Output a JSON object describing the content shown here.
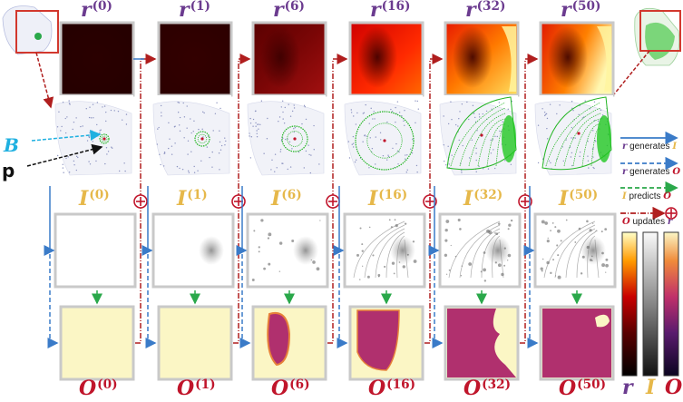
{
  "iterations": [
    "0",
    "1",
    "6",
    "16",
    "32",
    "50"
  ],
  "labels": {
    "r": "r",
    "I": "I",
    "O": "O",
    "B": "B",
    "p": "p"
  },
  "legend": {
    "r_generates_I": {
      "a": "r",
      "text": "generates",
      "b": "I"
    },
    "r_generates_O": {
      "a": "r",
      "text": "generates",
      "b": "O"
    },
    "I_predicts_O": {
      "a": "I",
      "text": "predicts",
      "b": "O"
    },
    "O_updates_r": {
      "a": "O",
      "text": "updates",
      "b": "r"
    }
  },
  "colorbar_labels": [
    "r",
    "I",
    "O"
  ],
  "colors": {
    "r_label": "#6b3b8f",
    "I_label": "#e6b84a",
    "O_label": "#c0152b",
    "generates_arrow": "#3a7bc8",
    "predicts_arrow": "#2aa84a",
    "updates_arrow": "#b01e1e",
    "B_color": "#1fb0e0",
    "mask_bg": "#fbf6c5",
    "mask_fg": "#b0306e"
  }
}
